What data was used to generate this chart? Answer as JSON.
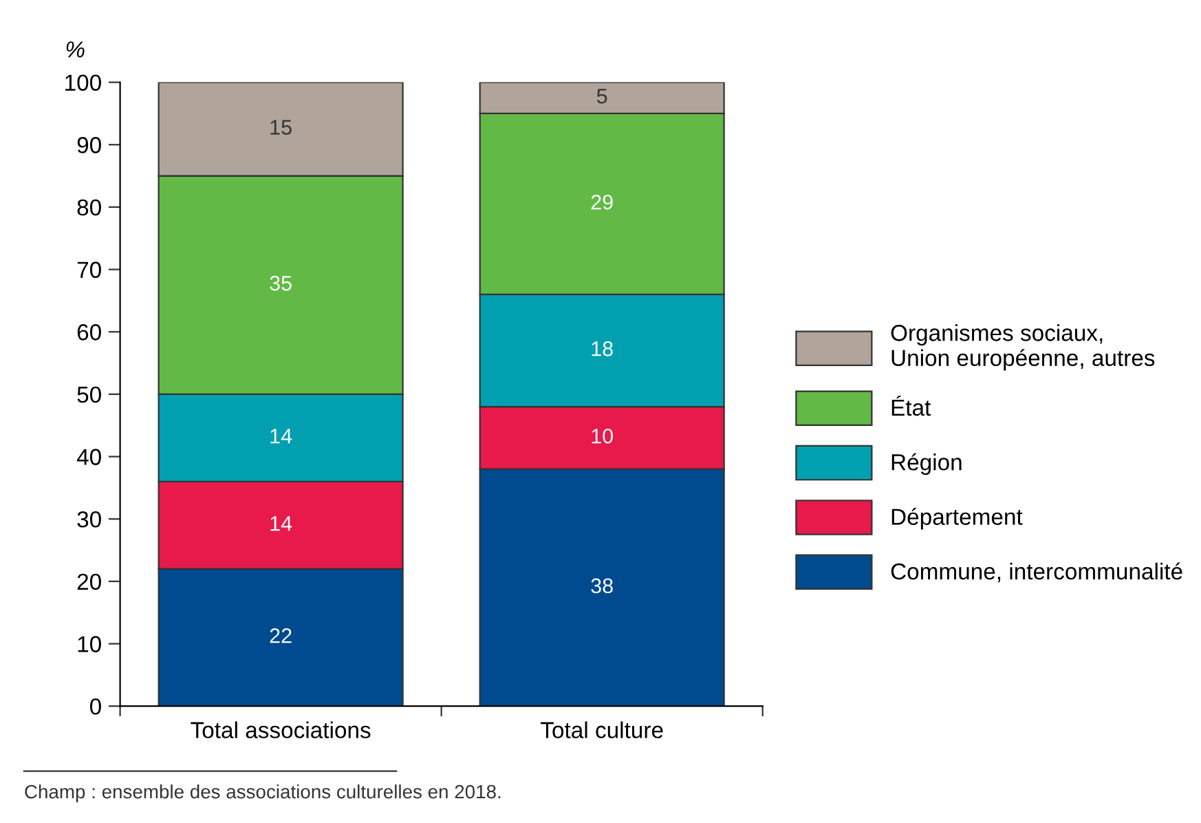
{
  "chart_data": {
    "type": "bar",
    "stacked": true,
    "ylabel": "%",
    "categories": [
      "Total associations",
      "Total culture"
    ],
    "series": [
      {
        "name": "Commune, intercommunalité",
        "color": "#004a8f",
        "values": [
          22,
          38
        ]
      },
      {
        "name": "Département",
        "color": "#e8194b",
        "values": [
          14,
          10
        ]
      },
      {
        "name": "Région",
        "color": "#00a0b0",
        "values": [
          14,
          18
        ]
      },
      {
        "name": "État",
        "color": "#62b946",
        "values": [
          35,
          29
        ]
      },
      {
        "name": "Organismes sociaux,\nUnion européenne, autres",
        "color": "#b0a49b",
        "values": [
          15,
          5
        ]
      }
    ],
    "ylim": [
      0,
      100
    ],
    "yticks": [
      0,
      10,
      20,
      30,
      40,
      50,
      60,
      70,
      80,
      90,
      100
    ],
    "data_labels": true,
    "legend": "right",
    "grid": false,
    "annotations": [
      "Champ : ensemble des associations culturelles en 2018."
    ]
  }
}
